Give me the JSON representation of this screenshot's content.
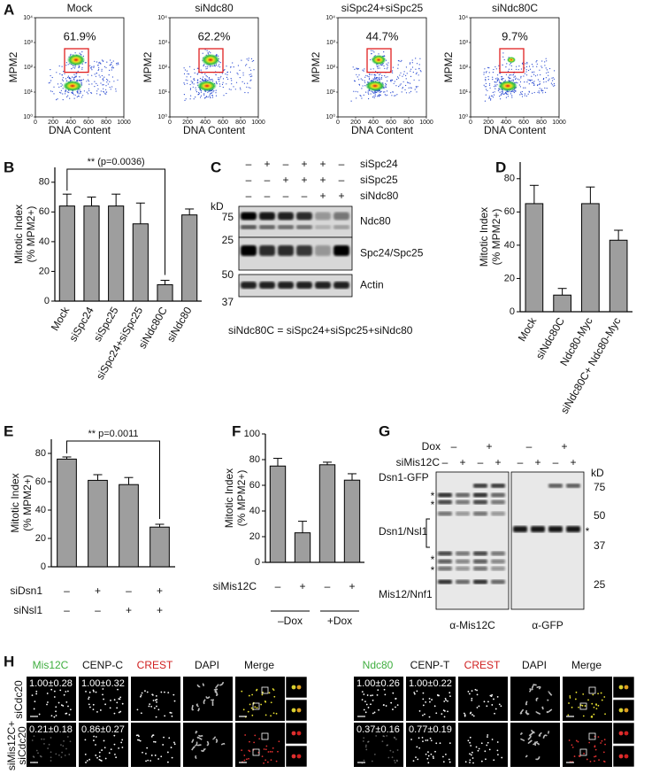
{
  "figure": {
    "panel_labels": [
      "A",
      "B",
      "C",
      "D",
      "E",
      "F",
      "G",
      "H"
    ],
    "facs": {
      "y_label": "MPM2",
      "x_label": "DNA Content",
      "xlim": [
        0,
        1000
      ],
      "xticks": [
        0,
        200,
        400,
        600,
        800,
        1000
      ],
      "ylim": [
        1,
        10000
      ],
      "yticks": [
        {
          "value": 1,
          "label": "10⁰"
        },
        {
          "value": 10,
          "label": "10¹"
        },
        {
          "value": 100,
          "label": "10²"
        },
        {
          "value": 1000,
          "label": "10³"
        },
        {
          "value": 10000,
          "label": "10⁴"
        }
      ],
      "plots": [
        {
          "title": "Mock",
          "percent": "61.9%"
        },
        {
          "title": "siNdc80",
          "percent": "62.2%"
        },
        {
          "title": "siSpc24+siSpc25",
          "percent": "44.7%"
        },
        {
          "title": "siNdc80C",
          "percent": "9.7%"
        }
      ]
    },
    "blot_c": {
      "conditions": [
        {
          "name": "siSpc24",
          "marks": [
            "–",
            "+",
            "–",
            "+",
            "+",
            "–"
          ]
        },
        {
          "name": "siSpc25",
          "marks": [
            "–",
            "–",
            "+",
            "+",
            "+",
            "–"
          ]
        },
        {
          "name": "siNdc80",
          "marks": [
            "–",
            "–",
            "–",
            "–",
            "+",
            "+"
          ]
        }
      ],
      "kd_label": "kD",
      "markers": [
        "75",
        "25",
        "50",
        "37"
      ],
      "bands": [
        "Ndc80",
        "Spc24/Spc25",
        "Actin"
      ],
      "caption": "siNdc80C = siSpc24+siSpc25+siNdc80"
    },
    "blot_g": {
      "dox": {
        "name": "Dox",
        "marks": [
          "–",
          "+",
          "–",
          "+"
        ]
      },
      "si": {
        "name": "siMis12C",
        "marks": [
          "–",
          "+",
          "–",
          "+",
          "–",
          "+",
          "–",
          "+"
        ]
      },
      "bands": [
        "Dsn1-GFP",
        "Dsn1/Nsl1",
        "Mis12/Nnf1"
      ],
      "asterisk": "*",
      "kd_label": "kD",
      "markers": [
        "75",
        "50",
        "37",
        "25"
      ],
      "antibodies": [
        "α-Mis12C",
        "α-GFP"
      ]
    },
    "imaging": {
      "rows": [
        [
          "siCdc20"
        ],
        [
          "siMis12C+",
          "siCdc20"
        ]
      ],
      "groups": [
        {
          "headers": [
            "Mis12C",
            "CENP-C",
            "CREST",
            "DAPI",
            "Merge"
          ],
          "values": [
            [
              "1.00±0.28",
              "1.00±0.32"
            ],
            [
              "0.21±0.18",
              "0.86±0.27"
            ]
          ]
        },
        {
          "headers": [
            "Ndc80",
            "CENP-T",
            "CREST",
            "DAPI",
            "Merge"
          ],
          "values": [
            [
              "1.00±0.26",
              "1.00±0.22"
            ],
            [
              "0.37±0.16",
              "0.77±0.19"
            ]
          ]
        }
      ]
    }
  },
  "chart_data": [
    {
      "type": "bar",
      "y_label": [
        "Mitotic Index",
        "(% MPM2+)"
      ],
      "categories": [
        "Mock",
        "siSpc24",
        "siSpc25",
        "siSpc24+siSpc25",
        "siNdc80C",
        "siNdc80"
      ],
      "values": [
        64,
        64,
        64,
        52,
        11,
        58
      ],
      "errors": [
        8,
        6,
        8,
        14,
        3,
        4
      ],
      "color": "#9e9e9e",
      "ylim": [
        0,
        90
      ],
      "yticks": [
        0,
        20,
        40,
        60,
        80
      ],
      "annotation": "** (p=0.0036)"
    },
    {
      "type": "bar",
      "y_label": [
        "Mitotic Index",
        "(% MPM2+)"
      ],
      "categories": [
        "Mock",
        "siNdc80C",
        "Ndc80-Myc",
        "siNdc80C+ Ndc80-Myc"
      ],
      "values": [
        65,
        10,
        65,
        43
      ],
      "errors": [
        11,
        4,
        10,
        6
      ],
      "color": "#9e9e9e",
      "ylim": [
        0,
        90
      ],
      "yticks": [
        0,
        20,
        40,
        60,
        80
      ]
    },
    {
      "type": "bar",
      "y_label": [
        "Mitotic Index",
        "(% MPM2+)"
      ],
      "values": [
        76,
        61,
        58,
        28
      ],
      "errors": [
        1.5,
        4,
        5,
        2
      ],
      "color": "#9e9e9e",
      "ylim": [
        0,
        90
      ],
      "yticks": [
        0,
        20,
        40,
        60,
        80
      ],
      "annotation": "** p=0.0011",
      "conditions": [
        {
          "name": "siDsn1",
          "marks": [
            "–",
            "+",
            "–",
            "+"
          ]
        },
        {
          "name": "siNsl1",
          "marks": [
            "–",
            "–",
            "+",
            "+"
          ]
        }
      ]
    },
    {
      "type": "bar",
      "y_label": [
        "Mitotic Index",
        "(% MPM2+)"
      ],
      "values": [
        75,
        23,
        76,
        64
      ],
      "errors": [
        6,
        9,
        2,
        5
      ],
      "color": "#9e9e9e",
      "ylim": [
        0,
        100
      ],
      "yticks": [
        0,
        20,
        40,
        60,
        80,
        100
      ],
      "conditions": [
        {
          "name": "siMis12C",
          "marks": [
            "–",
            "+",
            "–",
            "+"
          ]
        }
      ],
      "groups": [
        "–Dox",
        "+Dox"
      ]
    }
  ]
}
